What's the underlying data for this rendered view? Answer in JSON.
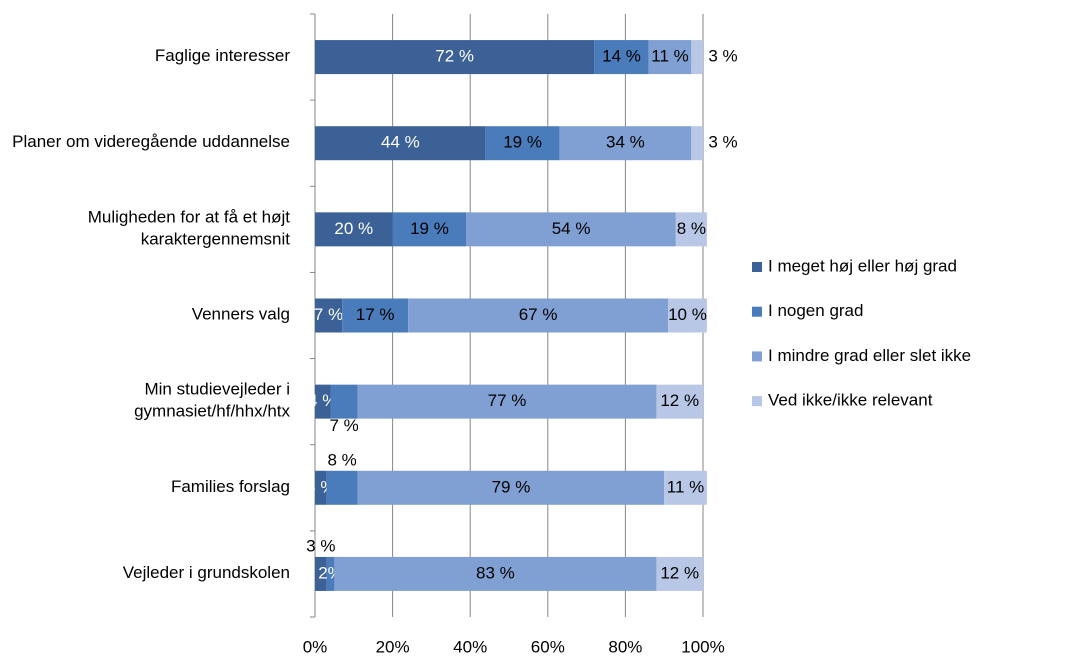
{
  "chart_data": {
    "type": "stacked_barh",
    "categories": [
      "Faglige interesser",
      "Planer om videregående uddannelse",
      "Muligheden for at få et højt karaktergennemsnit",
      "Venners valg",
      "Min studievejleder i gymnasiet/hf/hhx/htx",
      "Families forslag",
      "Vejleder i grundskolen"
    ],
    "series": [
      {
        "name": "I meget høj eller høj grad",
        "color": "#3b6196",
        "values": [
          72,
          44,
          20,
          7,
          4,
          3,
          3
        ],
        "value_labels": [
          "72 %",
          "44 %",
          "20 %",
          "7 %",
          "4 %",
          "3 %",
          "3 %"
        ]
      },
      {
        "name": "I nogen grad",
        "color": "#4a7bbb",
        "values": [
          14,
          19,
          19,
          17,
          7,
          8,
          2
        ],
        "value_labels": [
          "14 %",
          "19 %",
          "19 %",
          "17 %",
          "7 %",
          "8 %",
          "2%"
        ]
      },
      {
        "name": "I mindre grad eller slet ikke",
        "color": "#809fd2",
        "values": [
          11,
          34,
          54,
          67,
          77,
          79,
          83
        ],
        "value_labels": [
          "11 %",
          "34 %",
          "54 %",
          "67 %",
          "77 %",
          "79 %",
          "83 %"
        ]
      },
      {
        "name": "Ved ikke/ikke relevant",
        "color": "#b8c7e5",
        "values": [
          3,
          3,
          8,
          10,
          12,
          11,
          12
        ],
        "value_labels": [
          "3 %",
          "3 %",
          "8 %",
          "10 %",
          "12 %",
          "11 %",
          "12 %"
        ]
      }
    ],
    "xlim": [
      0,
      100
    ],
    "xticks": [
      {
        "value": 0,
        "label": "0%"
      },
      {
        "value": 20,
        "label": "20%"
      },
      {
        "value": 40,
        "label": "40%"
      },
      {
        "value": 60,
        "label": "60%"
      },
      {
        "value": 80,
        "label": "80%"
      },
      {
        "value": 100,
        "label": "100%"
      }
    ],
    "grid": true,
    "legend": "right"
  }
}
